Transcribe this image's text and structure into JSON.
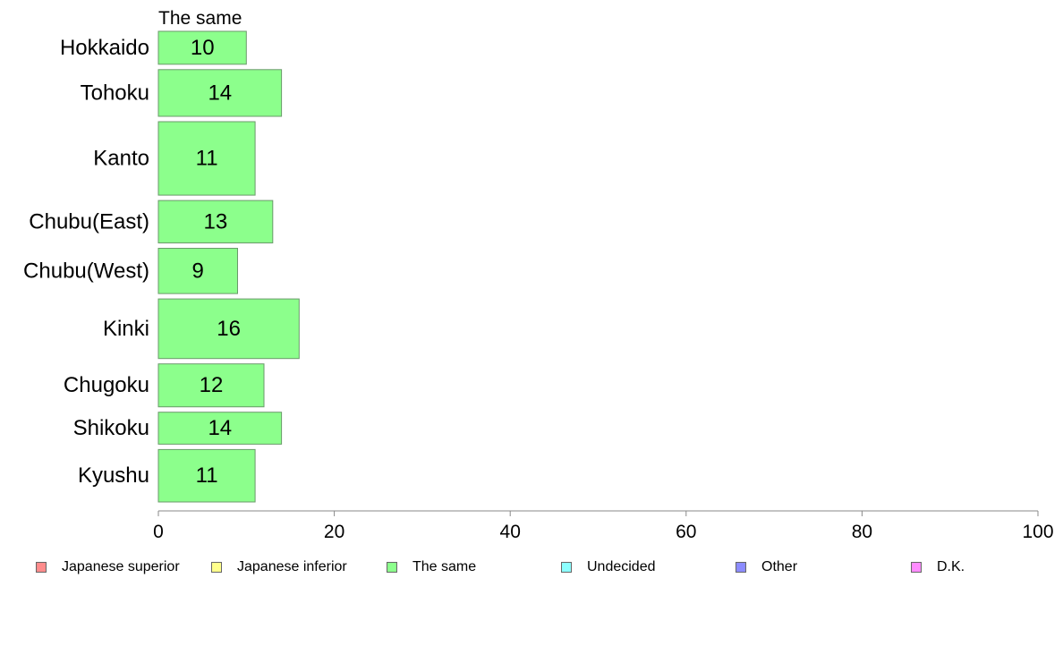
{
  "chart_data": {
    "type": "bar",
    "orientation": "horizontal",
    "panel_title": "The same",
    "categories": [
      "Hokkaido",
      "Tohoku",
      "Kanto",
      "Chubu(East)",
      "Chubu(West)",
      "Kinki",
      "Chugoku",
      "Shikoku",
      "Kyushu"
    ],
    "category_weights": [
      0.069,
      0.098,
      0.154,
      0.089,
      0.095,
      0.125,
      0.09,
      0.067,
      0.11
    ],
    "series": [
      {
        "name": "The same",
        "values": [
          10,
          14,
          11,
          13,
          9,
          16,
          12,
          14,
          11
        ],
        "labels": [
          "10",
          "14",
          "11",
          "13",
          "9",
          "16",
          "12",
          "14",
          "11"
        ],
        "color": "#8cff8c"
      }
    ],
    "xlim": [
      0,
      100
    ],
    "xticks": [
      0,
      20,
      40,
      60,
      80,
      100
    ],
    "xticklabels": [
      "0",
      "20",
      "40",
      "60",
      "80",
      "100"
    ],
    "grid": false,
    "legend_position": "bottom",
    "legend": [
      {
        "label": "Japanese superior",
        "color": "#ff8c8c"
      },
      {
        "label": "Japanese inferior",
        "color": "#ffff8c"
      },
      {
        "label": "The same",
        "color": "#8cff8c"
      },
      {
        "label": "Undecided",
        "color": "#8cffff"
      },
      {
        "label": "Other",
        "color": "#8c8cff"
      },
      {
        "label": "D.K.",
        "color": "#ff8cff"
      }
    ]
  }
}
